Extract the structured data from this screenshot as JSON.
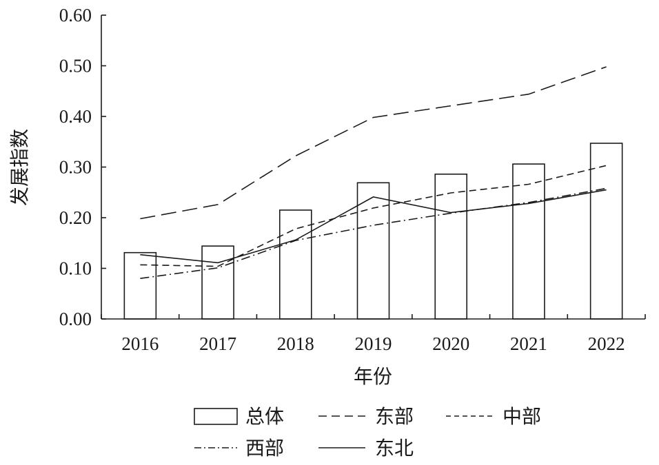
{
  "chart_data": {
    "type": "bar",
    "title": "",
    "xlabel": "年份",
    "ylabel": "发展指数",
    "ylim": [
      0,
      0.6
    ],
    "yticks": [
      "0.00",
      "0.10",
      "0.20",
      "0.30",
      "0.40",
      "0.50",
      "0.60"
    ],
    "categories": [
      "2016",
      "2017",
      "2018",
      "2019",
      "2020",
      "2021",
      "2022"
    ],
    "grid": false,
    "legend_position": "bottom",
    "series": [
      {
        "name": "总体",
        "type": "bar",
        "style": "box",
        "values": [
          0.131,
          0.144,
          0.215,
          0.269,
          0.286,
          0.306,
          0.347
        ]
      },
      {
        "name": "东部",
        "type": "line",
        "style": "long-dash",
        "values": [
          0.198,
          0.226,
          0.322,
          0.398,
          0.421,
          0.444,
          0.498
        ]
      },
      {
        "name": "中部",
        "type": "line",
        "style": "short-dash",
        "values": [
          0.107,
          0.104,
          0.178,
          0.219,
          0.249,
          0.266,
          0.303
        ]
      },
      {
        "name": "西部",
        "type": "line",
        "style": "dash-dot",
        "values": [
          0.08,
          0.101,
          0.155,
          0.185,
          0.209,
          0.23,
          0.258
        ]
      },
      {
        "name": "东北",
        "type": "line",
        "style": "solid",
        "values": [
          0.127,
          0.111,
          0.156,
          0.241,
          0.21,
          0.228,
          0.255
        ]
      }
    ]
  },
  "colors": {
    "ink": "#1a1a1a",
    "background": "#ffffff"
  }
}
